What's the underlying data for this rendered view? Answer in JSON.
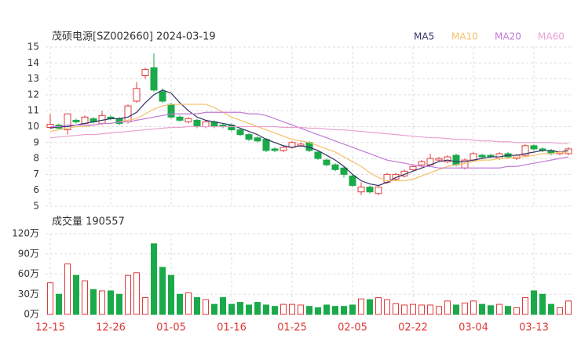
{
  "chart_data": [
    {
      "type": "candlestick",
      "title": "茂硕电源[SZ002660] 2024-03-19",
      "x": [
        "12-15",
        null,
        null,
        null,
        null,
        null,
        null,
        "12-26",
        null,
        null,
        null,
        null,
        null,
        null,
        "01-05",
        null,
        null,
        null,
        null,
        null,
        null,
        "01-16",
        null,
        null,
        null,
        null,
        null,
        null,
        "01-25",
        null,
        null,
        null,
        null,
        null,
        null,
        "02-05",
        null,
        null,
        null,
        null,
        null,
        null,
        "02-22",
        null,
        null,
        null,
        null,
        null,
        null,
        "03-04",
        null,
        null,
        null,
        null,
        null,
        null,
        "03-13",
        null,
        null,
        null,
        null
      ],
      "open": [
        9.95,
        10.1,
        9.8,
        10.4,
        10.2,
        10.5,
        10.2,
        10.6,
        10.5,
        10.3,
        11.6,
        13.2,
        13.7,
        12.2,
        11.4,
        10.6,
        10.3,
        10.4,
        10.0,
        10.3,
        10.1,
        10.1,
        9.8,
        9.5,
        9.3,
        9.2,
        8.6,
        8.5,
        8.7,
        8.8,
        9.0,
        8.4,
        7.9,
        7.6,
        7.4,
        6.9,
        5.9,
        6.2,
        5.8,
        6.5,
        6.7,
        6.9,
        7.3,
        7.6,
        7.6,
        7.9,
        7.8,
        8.2,
        7.4,
        7.9,
        8.2,
        8.2,
        8.0,
        8.3,
        8.0,
        8.2,
        8.8,
        8.6,
        8.5,
        8.3,
        8.3
      ],
      "high": [
        10.8,
        10.2,
        10.8,
        10.5,
        10.7,
        10.6,
        11.0,
        10.7,
        10.6,
        11.4,
        12.8,
        13.7,
        14.6,
        12.4,
        11.5,
        10.7,
        10.6,
        10.5,
        10.4,
        10.4,
        10.2,
        10.2,
        9.9,
        9.6,
        9.4,
        9.3,
        8.7,
        8.8,
        9.1,
        9.0,
        9.1,
        8.5,
        8.0,
        7.7,
        7.5,
        7.0,
        6.5,
        6.3,
        6.3,
        7.1,
        7.1,
        7.3,
        7.6,
        7.9,
        8.3,
        8.1,
        8.2,
        8.3,
        8.0,
        8.4,
        8.3,
        8.3,
        8.4,
        8.4,
        8.3,
        8.9,
        8.9,
        8.7,
        8.6,
        8.5,
        8.7
      ],
      "low": [
        9.9,
        9.8,
        9.5,
        10.2,
        10.1,
        10.2,
        10.1,
        10.4,
        10.1,
        10.2,
        11.5,
        13.0,
        12.2,
        11.5,
        10.5,
        10.3,
        10.2,
        9.9,
        9.9,
        9.9,
        9.9,
        9.7,
        9.4,
        9.1,
        9.0,
        8.4,
        8.4,
        8.4,
        8.6,
        8.7,
        8.4,
        7.9,
        7.5,
        7.2,
        6.8,
        6.2,
        5.7,
        5.8,
        5.7,
        6.4,
        6.6,
        6.8,
        7.2,
        7.5,
        7.5,
        7.8,
        7.7,
        7.5,
        7.3,
        7.8,
        8.0,
        8.0,
        7.9,
        8.0,
        7.9,
        8.1,
        8.5,
        8.4,
        8.2,
        8.2,
        8.2
      ],
      "close": [
        10.15,
        9.9,
        10.8,
        10.3,
        10.6,
        10.3,
        10.7,
        10.5,
        10.2,
        11.3,
        12.4,
        13.6,
        12.3,
        11.6,
        10.6,
        10.4,
        10.5,
        10.0,
        10.3,
        10.0,
        10.0,
        9.8,
        9.5,
        9.2,
        9.1,
        8.5,
        8.5,
        8.7,
        9.0,
        8.9,
        8.5,
        8.0,
        7.6,
        7.3,
        7.0,
        6.3,
        6.2,
        5.9,
        6.2,
        7.0,
        7.0,
        7.2,
        7.5,
        7.8,
        8.0,
        8.0,
        8.1,
        7.6,
        7.9,
        8.3,
        8.1,
        8.1,
        8.3,
        8.1,
        8.2,
        8.8,
        8.6,
        8.5,
        8.3,
        8.4,
        8.6
      ],
      "up_color": "#e03b3b",
      "down_color": "#1aaa4a",
      "series": [
        {
          "name": "MA5",
          "color": "#333366",
          "values": [
            9.9,
            10.0,
            10.0,
            10.1,
            10.2,
            10.3,
            10.4,
            10.5,
            10.5,
            10.6,
            10.9,
            11.5,
            12.0,
            12.3,
            12.1,
            11.5,
            11.0,
            10.6,
            10.4,
            10.3,
            10.2,
            10.1,
            9.9,
            9.7,
            9.5,
            9.2,
            9.0,
            8.8,
            8.7,
            8.8,
            8.7,
            8.5,
            8.2,
            7.9,
            7.5,
            7.0,
            6.6,
            6.4,
            6.3,
            6.5,
            6.8,
            7.0,
            7.2,
            7.4,
            7.6,
            7.8,
            7.9,
            7.8,
            7.8,
            7.9,
            8.0,
            8.1,
            8.1,
            8.2,
            8.2,
            8.3,
            8.4,
            8.5,
            8.5,
            8.4,
            8.5
          ]
        },
        {
          "name": "MA10",
          "color": "#f5c069",
          "values": [
            9.7,
            9.8,
            9.9,
            10.0,
            10.0,
            10.1,
            10.2,
            10.2,
            10.3,
            10.4,
            10.5,
            10.8,
            11.1,
            11.3,
            11.4,
            11.4,
            11.4,
            11.4,
            11.4,
            11.2,
            10.9,
            10.6,
            10.4,
            10.2,
            10.0,
            9.8,
            9.6,
            9.4,
            9.2,
            9.1,
            9.0,
            8.8,
            8.6,
            8.4,
            8.1,
            7.8,
            7.5,
            7.1,
            6.8,
            6.6,
            6.6,
            6.6,
            6.7,
            6.9,
            7.1,
            7.3,
            7.5,
            7.6,
            7.7,
            7.8,
            7.9,
            7.9,
            8.0,
            8.0,
            8.1,
            8.1,
            8.2,
            8.3,
            8.3,
            8.4,
            8.4
          ]
        },
        {
          "name": "MA20",
          "color": "#c27ad6",
          "values": [
            10.0,
            10.0,
            10.1,
            10.1,
            10.1,
            10.1,
            10.2,
            10.2,
            10.3,
            10.3,
            10.4,
            10.5,
            10.6,
            10.7,
            10.8,
            10.8,
            10.8,
            10.8,
            10.9,
            10.9,
            10.9,
            10.9,
            10.9,
            10.8,
            10.8,
            10.7,
            10.5,
            10.3,
            10.1,
            9.9,
            9.7,
            9.5,
            9.3,
            9.1,
            8.9,
            8.7,
            8.5,
            8.3,
            8.1,
            7.9,
            7.8,
            7.7,
            7.6,
            7.5,
            7.5,
            7.4,
            7.4,
            7.4,
            7.4,
            7.4,
            7.4,
            7.4,
            7.4,
            7.5,
            7.5,
            7.6,
            7.7,
            7.8,
            7.9,
            8.0,
            8.1
          ]
        },
        {
          "name": "MA60",
          "color": "#e9a0d0",
          "values": [
            9.3,
            9.35,
            9.4,
            9.45,
            9.5,
            9.5,
            9.55,
            9.6,
            9.65,
            9.7,
            9.75,
            9.8,
            9.85,
            9.9,
            9.95,
            9.95,
            10.0,
            10.0,
            10.0,
            10.0,
            10.0,
            10.0,
            10.0,
            10.0,
            10.0,
            10.0,
            10.0,
            9.95,
            9.95,
            9.95,
            9.9,
            9.9,
            9.85,
            9.8,
            9.8,
            9.75,
            9.7,
            9.65,
            9.6,
            9.55,
            9.5,
            9.45,
            9.4,
            9.35,
            9.3,
            9.3,
            9.25,
            9.2,
            9.2,
            9.15,
            9.1,
            9.1,
            9.05,
            9.05,
            9.0,
            9.0,
            9.0,
            9.0,
            9.0,
            8.95,
            8.95
          ]
        }
      ],
      "ylim": [
        5,
        15
      ],
      "yticks": [
        5,
        6,
        7,
        8,
        9,
        10,
        11,
        12,
        13,
        14,
        15
      ],
      "grid": true
    },
    {
      "type": "bar",
      "title": "成交量 190557",
      "values": [
        47,
        30,
        75,
        58,
        50,
        37,
        35,
        35,
        30,
        58,
        62,
        25,
        105,
        70,
        58,
        30,
        32,
        25,
        22,
        15,
        25,
        15,
        18,
        14,
        18,
        14,
        12,
        15,
        15,
        14,
        12,
        10,
        14,
        12,
        12,
        14,
        23,
        22,
        25,
        22,
        16,
        14,
        15,
        14,
        14,
        12,
        20,
        14,
        17,
        20,
        15,
        13,
        15,
        12,
        10,
        25,
        35,
        30,
        15,
        10,
        20
      ],
      "ylim": [
        0,
        120
      ],
      "yticks": [
        {
          "value": 0,
          "label": "0万"
        },
        {
          "value": 30,
          "label": "30万"
        },
        {
          "value": 60,
          "label": "60万"
        },
        {
          "value": 90,
          "label": "90万"
        },
        {
          "value": 120,
          "label": "120万"
        }
      ],
      "grid": true
    }
  ]
}
